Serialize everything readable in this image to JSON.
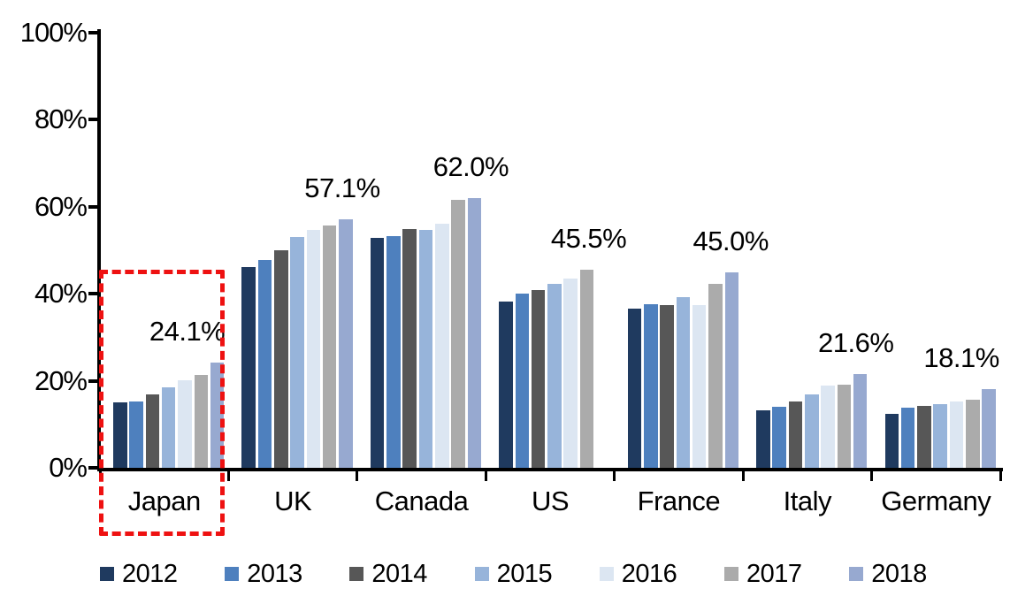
{
  "chart_data": {
    "type": "bar",
    "title": "",
    "categories": [
      "Japan",
      "UK",
      "Canada",
      "US",
      "France",
      "Italy",
      "Germany"
    ],
    "series": [
      {
        "name": "2012",
        "color": "#1F3A5F",
        "values": [
          15.0,
          46.2,
          52.9,
          38.2,
          36.5,
          13.3,
          12.5
        ]
      },
      {
        "name": "2013",
        "color": "#4E80BE",
        "values": [
          15.2,
          47.7,
          53.3,
          40.0,
          37.6,
          14.0,
          13.9
        ]
      },
      {
        "name": "2014",
        "color": "#575757",
        "values": [
          16.9,
          49.9,
          54.8,
          40.9,
          37.5,
          15.3,
          14.2
        ]
      },
      {
        "name": "2015",
        "color": "#97B4DA",
        "values": [
          18.4,
          53.1,
          54.6,
          42.2,
          39.3,
          16.8,
          14.6
        ]
      },
      {
        "name": "2016",
        "color": "#DCE6F2",
        "values": [
          20.1,
          54.6,
          56.0,
          43.4,
          37.4,
          19.0,
          15.2
        ]
      },
      {
        "name": "2017",
        "color": "#ABABAB",
        "values": [
          21.3,
          55.6,
          61.5,
          45.5,
          42.3,
          19.1,
          15.7
        ]
      },
      {
        "name": "2018",
        "color": "#97A9D0",
        "values": [
          24.1,
          57.1,
          62.0,
          null,
          45.0,
          21.6,
          18.1
        ]
      }
    ],
    "data_labels": [
      {
        "category": "Japan",
        "text": "24.1%",
        "dx": -34
      },
      {
        "category": "UK",
        "text": "57.1%",
        "dx": -4
      },
      {
        "category": "Canada",
        "text": "62.0%",
        "dx": -4
      },
      {
        "category": "US",
        "text": "45.5%",
        "dx": 2
      },
      {
        "category": "France",
        "text": "45.0%",
        "dx": -1
      },
      {
        "category": "Italy",
        "text": "21.6%",
        "dx": -5
      },
      {
        "category": "Germany",
        "text": "18.1%",
        "dx": -31
      }
    ],
    "y_axis": {
      "tick_labels": [
        "0%",
        "20%",
        "40%",
        "60%",
        "80%",
        "100%"
      ],
      "tick_values": [
        0,
        20,
        40,
        60,
        80,
        100
      ],
      "min": 0,
      "max": 100
    },
    "xlabel": "",
    "ylabel": "",
    "grid": false,
    "legend_position": "bottom",
    "legend_entries": [
      "2012",
      "2013",
      "2014",
      "2015",
      "2016",
      "2017",
      "2018"
    ],
    "highlight": {
      "category": "Japan",
      "color": "#ee1111",
      "style": "dashed"
    },
    "axis_color": "#000000",
    "background_color": "#ffffff"
  }
}
